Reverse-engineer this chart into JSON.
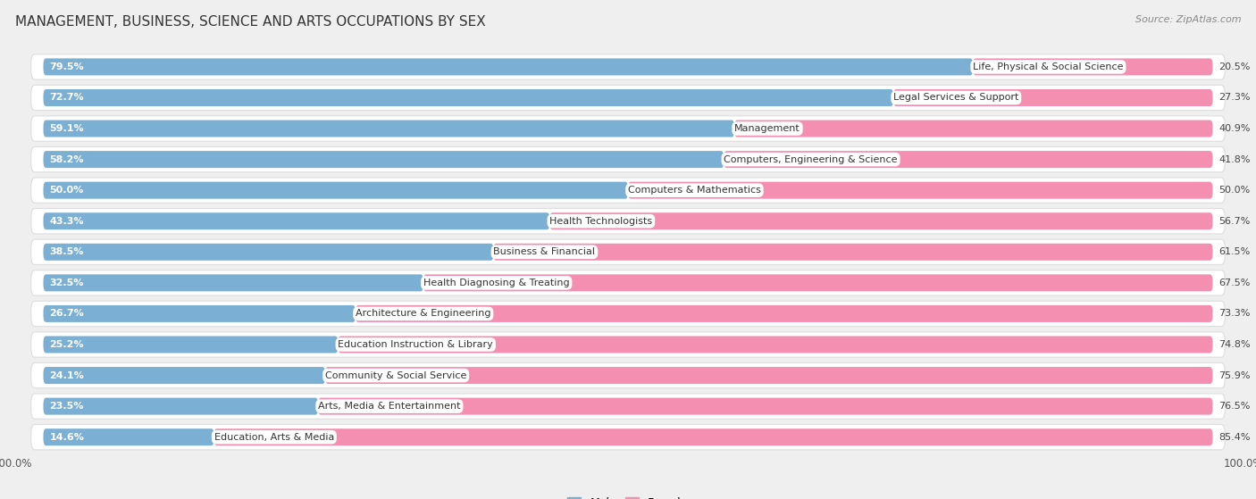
{
  "title": "MANAGEMENT, BUSINESS, SCIENCE AND ARTS OCCUPATIONS BY SEX",
  "source": "Source: ZipAtlas.com",
  "categories": [
    "Life, Physical & Social Science",
    "Legal Services & Support",
    "Management",
    "Computers, Engineering & Science",
    "Computers & Mathematics",
    "Health Technologists",
    "Business & Financial",
    "Health Diagnosing & Treating",
    "Architecture & Engineering",
    "Education Instruction & Library",
    "Community & Social Service",
    "Arts, Media & Entertainment",
    "Education, Arts & Media"
  ],
  "male_pct": [
    79.5,
    72.7,
    59.1,
    58.2,
    50.0,
    43.3,
    38.5,
    32.5,
    26.7,
    25.2,
    24.1,
    23.5,
    14.6
  ],
  "female_pct": [
    20.5,
    27.3,
    40.9,
    41.8,
    50.0,
    56.7,
    61.5,
    67.5,
    73.3,
    74.8,
    75.9,
    76.5,
    85.4
  ],
  "male_color": "#7bafd4",
  "female_color": "#f48fb1",
  "background_color": "#efefef",
  "row_bg_color": "#ffffff",
  "figsize": [
    14.06,
    5.59
  ],
  "dpi": 100,
  "title_fontsize": 11,
  "source_fontsize": 8,
  "label_fontsize": 8,
  "pct_fontsize": 8
}
